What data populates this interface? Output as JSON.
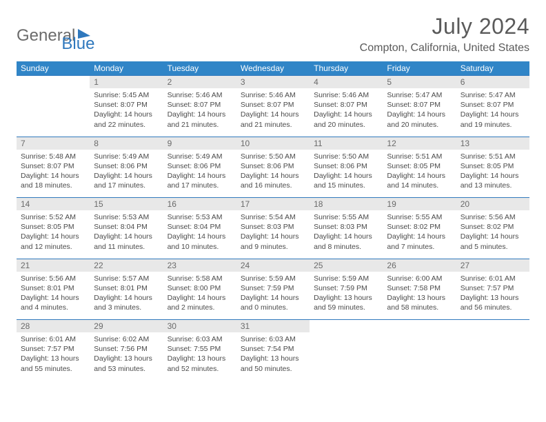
{
  "brand": {
    "part1": "General",
    "part2": "Blue"
  },
  "title": "July 2024",
  "location": "Compton, California, United States",
  "colors": {
    "header_bg": "#3085c7",
    "header_text": "#ffffff",
    "daynum_bg": "#e8e8e8",
    "daynum_text": "#6a6a6a",
    "border": "#2f78bd",
    "body_text": "#4a4a4a",
    "title_text": "#5a5a5a",
    "logo_gray": "#6b6b6b",
    "logo_blue": "#2f78bd",
    "background": "#ffffff"
  },
  "typography": {
    "title_fontsize": 32,
    "location_fontsize": 16,
    "header_fontsize": 12,
    "daynum_fontsize": 12,
    "cell_fontsize": 10.5,
    "logo_fontsize": 24
  },
  "weekdays": [
    "Sunday",
    "Monday",
    "Tuesday",
    "Wednesday",
    "Thursday",
    "Friday",
    "Saturday"
  ],
  "weeks": [
    [
      null,
      {
        "n": "1",
        "l1": "Sunrise: 5:45 AM",
        "l2": "Sunset: 8:07 PM",
        "l3": "Daylight: 14 hours",
        "l4": "and 22 minutes."
      },
      {
        "n": "2",
        "l1": "Sunrise: 5:46 AM",
        "l2": "Sunset: 8:07 PM",
        "l3": "Daylight: 14 hours",
        "l4": "and 21 minutes."
      },
      {
        "n": "3",
        "l1": "Sunrise: 5:46 AM",
        "l2": "Sunset: 8:07 PM",
        "l3": "Daylight: 14 hours",
        "l4": "and 21 minutes."
      },
      {
        "n": "4",
        "l1": "Sunrise: 5:46 AM",
        "l2": "Sunset: 8:07 PM",
        "l3": "Daylight: 14 hours",
        "l4": "and 20 minutes."
      },
      {
        "n": "5",
        "l1": "Sunrise: 5:47 AM",
        "l2": "Sunset: 8:07 PM",
        "l3": "Daylight: 14 hours",
        "l4": "and 20 minutes."
      },
      {
        "n": "6",
        "l1": "Sunrise: 5:47 AM",
        "l2": "Sunset: 8:07 PM",
        "l3": "Daylight: 14 hours",
        "l4": "and 19 minutes."
      }
    ],
    [
      {
        "n": "7",
        "l1": "Sunrise: 5:48 AM",
        "l2": "Sunset: 8:07 PM",
        "l3": "Daylight: 14 hours",
        "l4": "and 18 minutes."
      },
      {
        "n": "8",
        "l1": "Sunrise: 5:49 AM",
        "l2": "Sunset: 8:06 PM",
        "l3": "Daylight: 14 hours",
        "l4": "and 17 minutes."
      },
      {
        "n": "9",
        "l1": "Sunrise: 5:49 AM",
        "l2": "Sunset: 8:06 PM",
        "l3": "Daylight: 14 hours",
        "l4": "and 17 minutes."
      },
      {
        "n": "10",
        "l1": "Sunrise: 5:50 AM",
        "l2": "Sunset: 8:06 PM",
        "l3": "Daylight: 14 hours",
        "l4": "and 16 minutes."
      },
      {
        "n": "11",
        "l1": "Sunrise: 5:50 AM",
        "l2": "Sunset: 8:06 PM",
        "l3": "Daylight: 14 hours",
        "l4": "and 15 minutes."
      },
      {
        "n": "12",
        "l1": "Sunrise: 5:51 AM",
        "l2": "Sunset: 8:05 PM",
        "l3": "Daylight: 14 hours",
        "l4": "and 14 minutes."
      },
      {
        "n": "13",
        "l1": "Sunrise: 5:51 AM",
        "l2": "Sunset: 8:05 PM",
        "l3": "Daylight: 14 hours",
        "l4": "and 13 minutes."
      }
    ],
    [
      {
        "n": "14",
        "l1": "Sunrise: 5:52 AM",
        "l2": "Sunset: 8:05 PM",
        "l3": "Daylight: 14 hours",
        "l4": "and 12 minutes."
      },
      {
        "n": "15",
        "l1": "Sunrise: 5:53 AM",
        "l2": "Sunset: 8:04 PM",
        "l3": "Daylight: 14 hours",
        "l4": "and 11 minutes."
      },
      {
        "n": "16",
        "l1": "Sunrise: 5:53 AM",
        "l2": "Sunset: 8:04 PM",
        "l3": "Daylight: 14 hours",
        "l4": "and 10 minutes."
      },
      {
        "n": "17",
        "l1": "Sunrise: 5:54 AM",
        "l2": "Sunset: 8:03 PM",
        "l3": "Daylight: 14 hours",
        "l4": "and 9 minutes."
      },
      {
        "n": "18",
        "l1": "Sunrise: 5:55 AM",
        "l2": "Sunset: 8:03 PM",
        "l3": "Daylight: 14 hours",
        "l4": "and 8 minutes."
      },
      {
        "n": "19",
        "l1": "Sunrise: 5:55 AM",
        "l2": "Sunset: 8:02 PM",
        "l3": "Daylight: 14 hours",
        "l4": "and 7 minutes."
      },
      {
        "n": "20",
        "l1": "Sunrise: 5:56 AM",
        "l2": "Sunset: 8:02 PM",
        "l3": "Daylight: 14 hours",
        "l4": "and 5 minutes."
      }
    ],
    [
      {
        "n": "21",
        "l1": "Sunrise: 5:56 AM",
        "l2": "Sunset: 8:01 PM",
        "l3": "Daylight: 14 hours",
        "l4": "and 4 minutes."
      },
      {
        "n": "22",
        "l1": "Sunrise: 5:57 AM",
        "l2": "Sunset: 8:01 PM",
        "l3": "Daylight: 14 hours",
        "l4": "and 3 minutes."
      },
      {
        "n": "23",
        "l1": "Sunrise: 5:58 AM",
        "l2": "Sunset: 8:00 PM",
        "l3": "Daylight: 14 hours",
        "l4": "and 2 minutes."
      },
      {
        "n": "24",
        "l1": "Sunrise: 5:59 AM",
        "l2": "Sunset: 7:59 PM",
        "l3": "Daylight: 14 hours",
        "l4": "and 0 minutes."
      },
      {
        "n": "25",
        "l1": "Sunrise: 5:59 AM",
        "l2": "Sunset: 7:59 PM",
        "l3": "Daylight: 13 hours",
        "l4": "and 59 minutes."
      },
      {
        "n": "26",
        "l1": "Sunrise: 6:00 AM",
        "l2": "Sunset: 7:58 PM",
        "l3": "Daylight: 13 hours",
        "l4": "and 58 minutes."
      },
      {
        "n": "27",
        "l1": "Sunrise: 6:01 AM",
        "l2": "Sunset: 7:57 PM",
        "l3": "Daylight: 13 hours",
        "l4": "and 56 minutes."
      }
    ],
    [
      {
        "n": "28",
        "l1": "Sunrise: 6:01 AM",
        "l2": "Sunset: 7:57 PM",
        "l3": "Daylight: 13 hours",
        "l4": "and 55 minutes."
      },
      {
        "n": "29",
        "l1": "Sunrise: 6:02 AM",
        "l2": "Sunset: 7:56 PM",
        "l3": "Daylight: 13 hours",
        "l4": "and 53 minutes."
      },
      {
        "n": "30",
        "l1": "Sunrise: 6:03 AM",
        "l2": "Sunset: 7:55 PM",
        "l3": "Daylight: 13 hours",
        "l4": "and 52 minutes."
      },
      {
        "n": "31",
        "l1": "Sunrise: 6:03 AM",
        "l2": "Sunset: 7:54 PM",
        "l3": "Daylight: 13 hours",
        "l4": "and 50 minutes."
      },
      null,
      null,
      null
    ]
  ]
}
